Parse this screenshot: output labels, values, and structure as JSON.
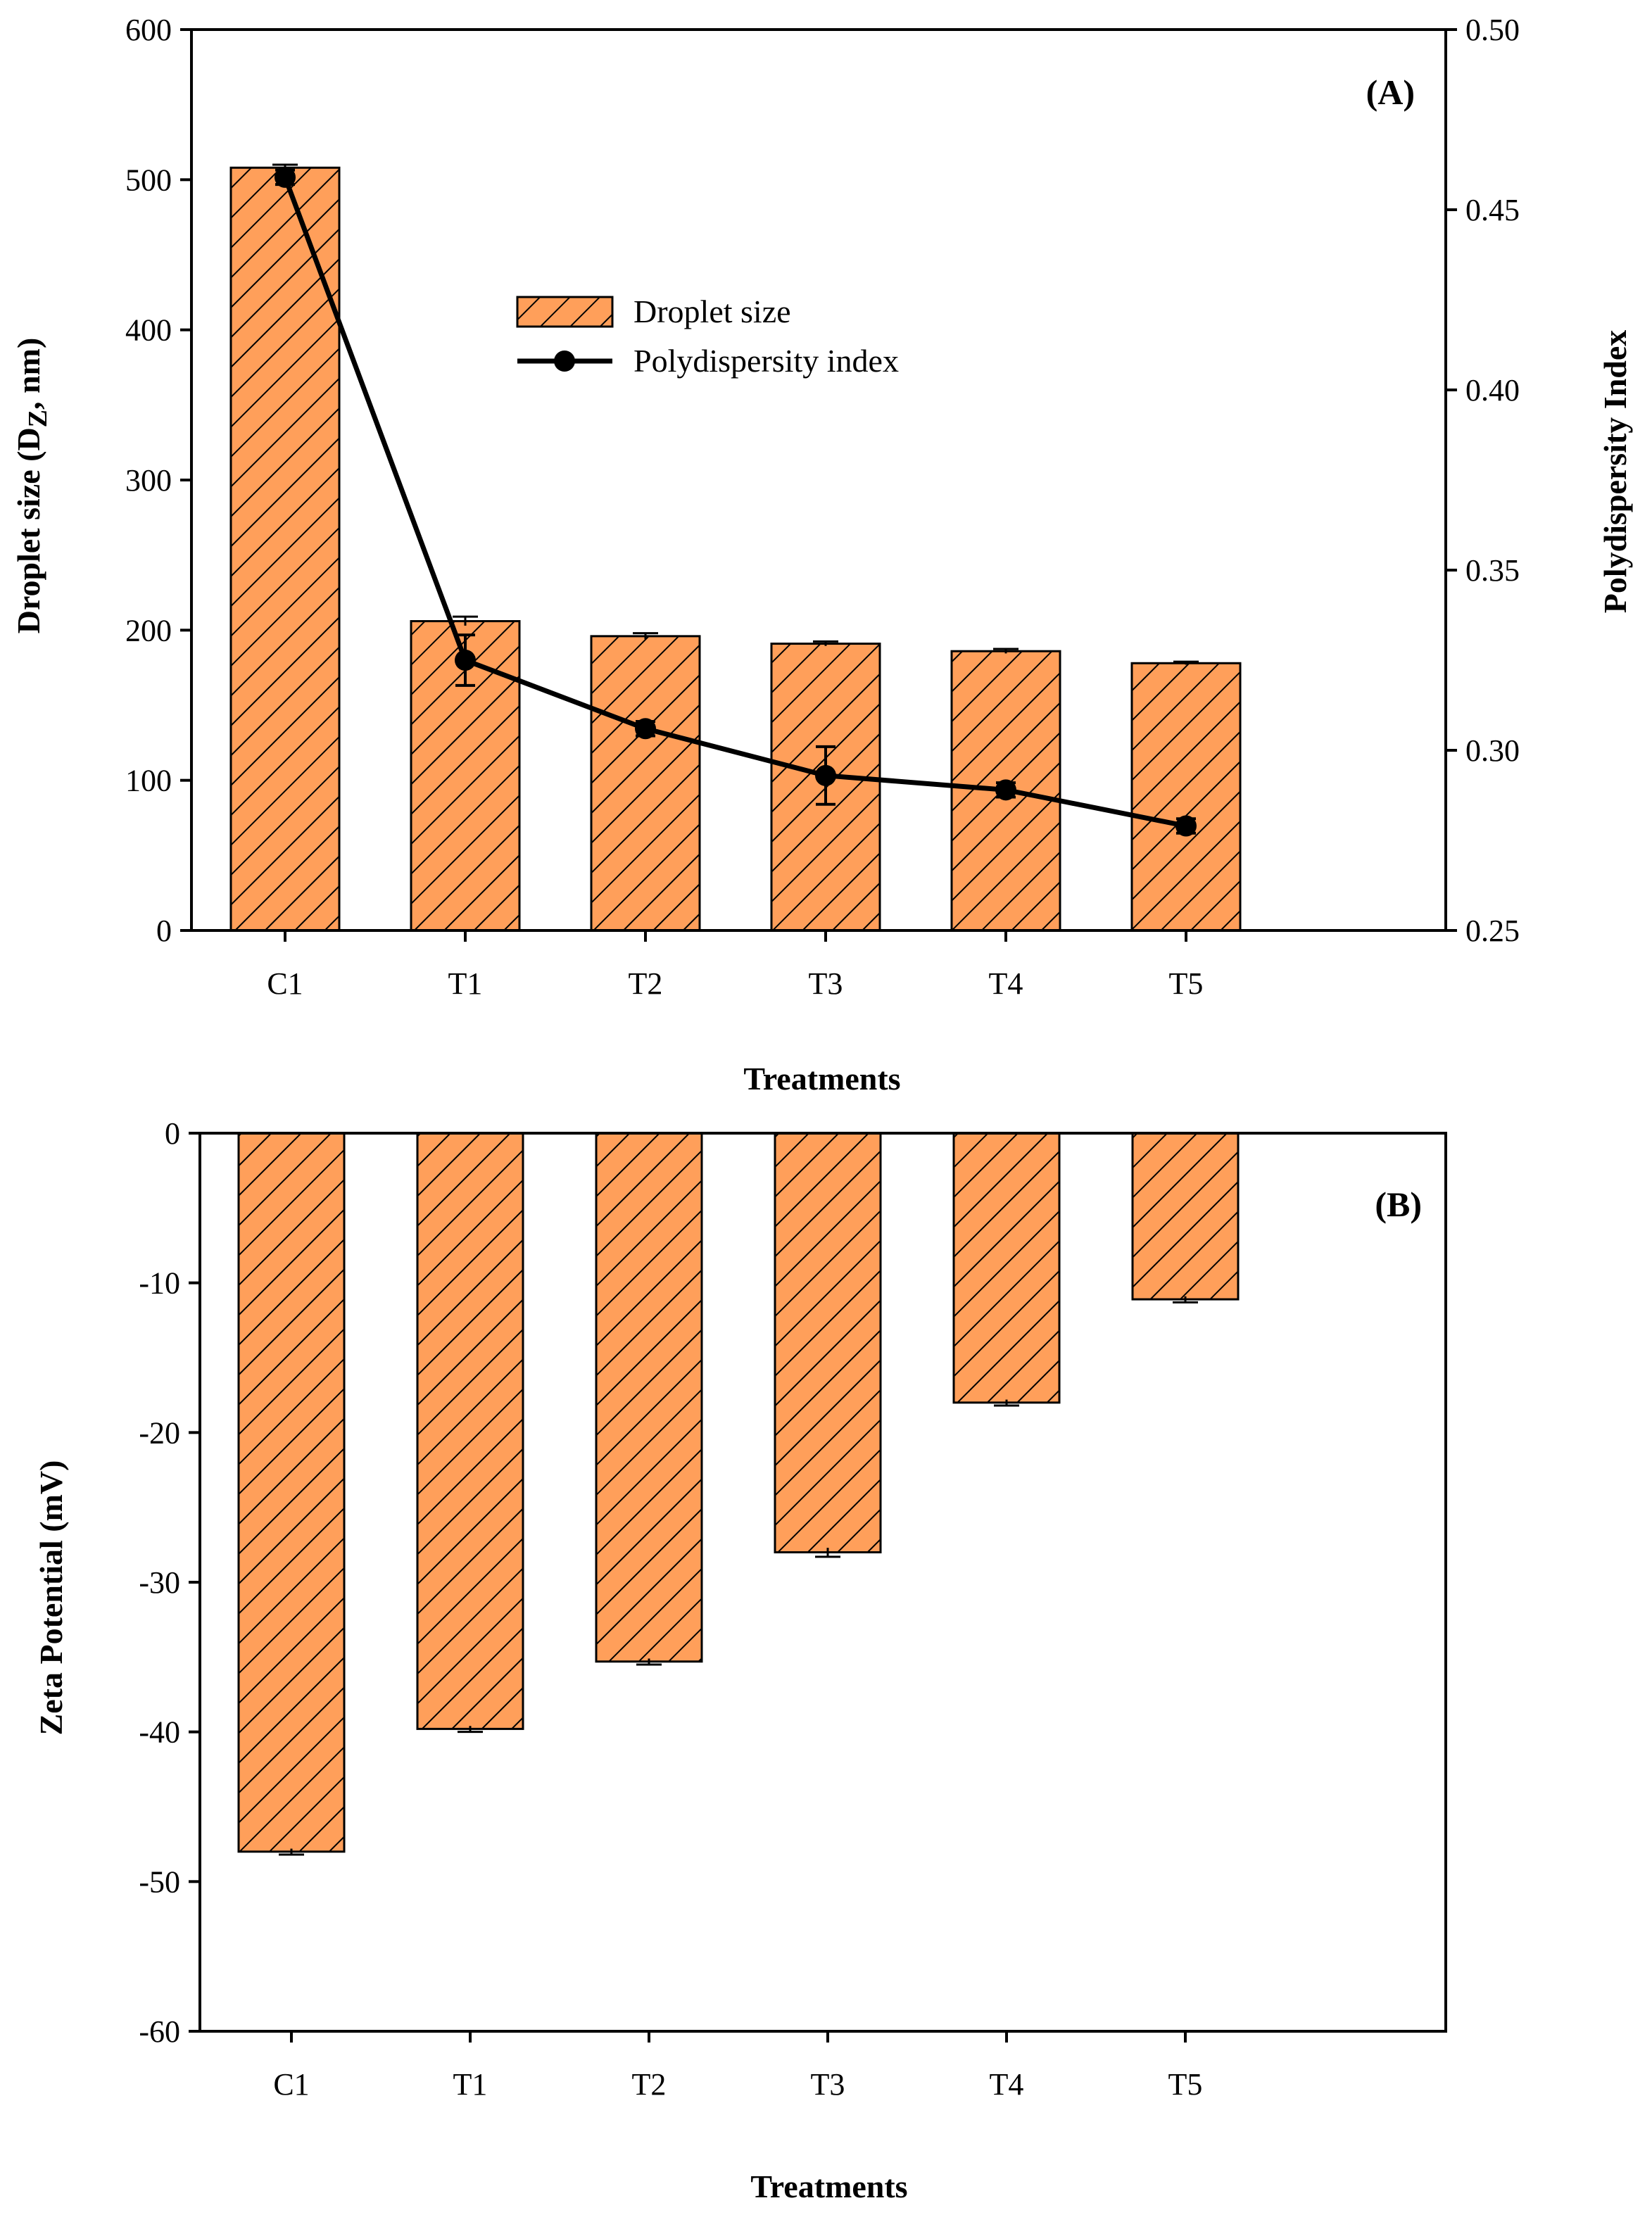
{
  "colors": {
    "bar_fill": "#FF9F5A",
    "hatch": "#000000",
    "line": "#000000",
    "background": "#FFFFFF"
  },
  "chart_data": [
    {
      "panel": "A",
      "panel_label": "(A)",
      "type": "bar+line",
      "categories": [
        "C1",
        "T1",
        "T2",
        "T3",
        "T4",
        "T5"
      ],
      "xlabel": "Treatments",
      "ylabel": "Droplet size (D",
      "ylabel_subscript": "Z",
      "ylabel_suffix": ", nm)",
      "ylim": [
        0,
        600
      ],
      "yticks": [
        0,
        100,
        200,
        300,
        400,
        500,
        600
      ],
      "y2label": "Polydispersity Index",
      "y2lim": [
        0.25,
        0.5
      ],
      "y2ticks": [
        "0.25",
        "0.30",
        "0.35",
        "0.40",
        "0.45",
        "0.50"
      ],
      "legend_position": "upper-center",
      "series": [
        {
          "name": "Droplet size",
          "type": "bar",
          "axis": "left",
          "values": [
            508,
            206,
            196,
            191,
            186,
            178
          ],
          "errors": [
            2,
            3,
            2,
            1.5,
            1.5,
            1
          ]
        },
        {
          "name": "Polydispersity index",
          "type": "line",
          "axis": "right",
          "values": [
            0.459,
            0.325,
            0.306,
            0.293,
            0.289,
            0.279
          ],
          "errors": [
            0.002,
            0.007,
            0.002,
            0.008,
            0.002,
            0.002
          ]
        }
      ]
    },
    {
      "panel": "B",
      "panel_label": "(B)",
      "type": "bar",
      "categories": [
        "C1",
        "T1",
        "T2",
        "T3",
        "T4",
        "T5"
      ],
      "xlabel": "Treatments",
      "ylabel": "Zeta Potential (mV)",
      "ylim": [
        -60,
        0
      ],
      "yticks": [
        0,
        -10,
        -20,
        -30,
        -40,
        -50,
        -60
      ],
      "series": [
        {
          "name": "Zeta potential",
          "type": "bar",
          "values": [
            -48,
            -39.8,
            -35.3,
            -28,
            -18,
            -11.1
          ],
          "errors": [
            0.2,
            0.2,
            0.2,
            0.3,
            0.2,
            0.2
          ]
        }
      ]
    }
  ]
}
